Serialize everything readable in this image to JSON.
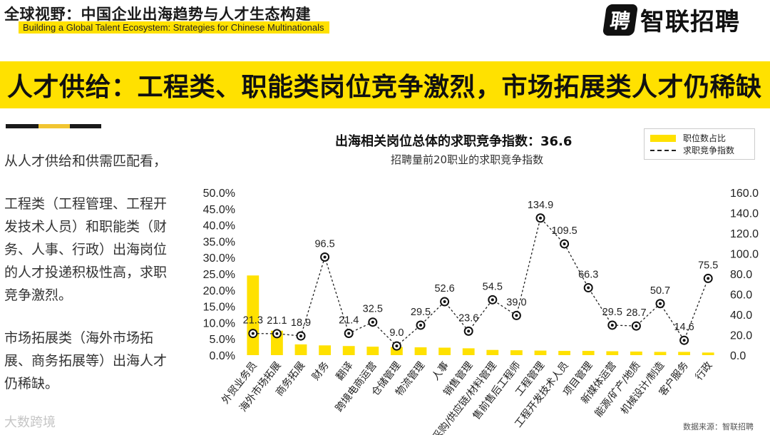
{
  "header": {
    "title": "全球视野：中国企业出海趋势与人才生态构建",
    "subtitle": "Building a Global Talent Ecosystem: Strategies for Chinese Multinationals"
  },
  "logo": {
    "mark": "聘",
    "text": "智联招聘"
  },
  "banner": {
    "text": "人才供给：工程类、职能类岗位竞争激烈，市场拓展类人才仍稀缺"
  },
  "side_text": {
    "p1": "从人才供给和供需匹配看，",
    "p2": "工程类（工程管理、工程开发技术人员）和职能类（财务、人事、行政）出海岗位的人才投递积极性高，求职竞争激烈。",
    "p3": "市场拓展类（海外市场拓展、商务拓展等）出海人才仍稀缺。"
  },
  "source": "数据来源：智联招聘",
  "watermark": "大数跨境",
  "colors": {
    "bar": "#ffe100",
    "line": "#222222",
    "accent": "#ffe100"
  },
  "chart_data": {
    "type": "bar",
    "title": "出海相关岗位总体的求职竞争指数：36.6",
    "subtitle": "招聘量前20职业的求职竞争指数",
    "categories": [
      "外贸业务员",
      "海外市场拓展",
      "商务拓展",
      "财务",
      "翻译",
      "跨境电商运营",
      "仓储管理",
      "物流管理",
      "人事",
      "销售管理",
      "采购/供应链/材料管理",
      "售前售后工程师",
      "工程管理",
      "工程开发技术人员",
      "项目管理",
      "新媒体运营",
      "能源/矿产/地质",
      "机械设计/制造",
      "客户服务",
      "行政"
    ],
    "series": [
      {
        "name": "职位数占比",
        "type": "bar",
        "axis": "left",
        "values": [
          24.5,
          7.5,
          3.3,
          3.0,
          2.8,
          2.6,
          2.5,
          2.4,
          2.3,
          2.1,
          1.6,
          1.5,
          1.4,
          1.3,
          1.3,
          1.2,
          1.1,
          1.0,
          1.0,
          0.8
        ]
      },
      {
        "name": "求职竞争指数",
        "type": "line",
        "axis": "right",
        "values": [
          21.3,
          21.1,
          18.9,
          96.5,
          21.4,
          32.5,
          9.0,
          29.5,
          52.6,
          23.6,
          54.5,
          39.0,
          134.9,
          109.5,
          66.3,
          29.5,
          28.7,
          50.7,
          14.6,
          75.5
        ],
        "labels": [
          "21.3",
          "21.1",
          "18.9",
          "96.5",
          "21.4",
          "32.5",
          "9.0",
          "29.5",
          "52.6",
          "23.6",
          "54.5",
          "39.0",
          "134.9",
          "109.5",
          "66.3",
          "29.5",
          "28.7",
          "50.7",
          "14.6",
          "75.5"
        ]
      }
    ],
    "y_left": {
      "min": 0,
      "max": 50,
      "step": 5,
      "ticks": [
        "0.0%",
        "5.0%",
        "10.0%",
        "15.0%",
        "20.0%",
        "25.0%",
        "30.0%",
        "35.0%",
        "40.0%",
        "45.0%",
        "50.0%"
      ]
    },
    "y_right": {
      "min": 0,
      "max": 160,
      "step": 20,
      "ticks": [
        "0.0",
        "20.0",
        "40.0",
        "60.0",
        "80.0",
        "100.0",
        "120.0",
        "140.0",
        "160.0"
      ]
    },
    "legend": {
      "position": "top-right",
      "bar_label": "职位数占比",
      "line_label": "求职竞争指数"
    },
    "grid": false
  }
}
